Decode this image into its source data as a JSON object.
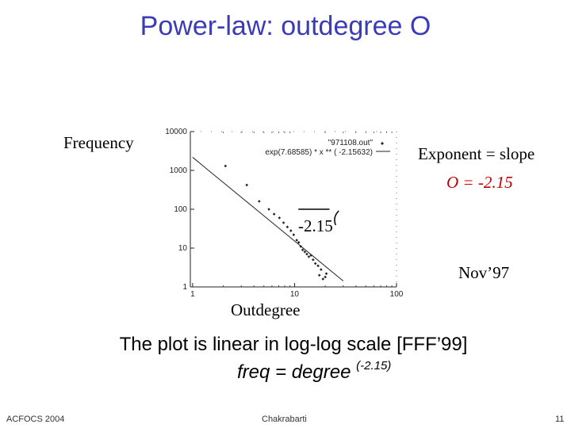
{
  "slide": {
    "title": "Power-law: outdegree O",
    "frequency_label": "Frequency",
    "exponent_label": "Exponent = slope",
    "exponent_value": "O = -2.15",
    "slope_annotation": "-2.15",
    "date_label": "Nov’97",
    "caption_line1": "The plot is linear in log-log scale [FFF’99]",
    "caption_line2_base": "freq = degree ",
    "caption_line2_exp": "(-2.15)",
    "footer_left": "ACFOCS 2004",
    "footer_center": "Chakrabarti",
    "footer_right": "11"
  },
  "chart_data": {
    "type": "scatter",
    "xscale": "log",
    "yscale": "log",
    "xlim": [
      0.95,
      100
    ],
    "ylim": [
      1,
      10000
    ],
    "xtick_labels": [
      "1",
      "10",
      "100"
    ],
    "xticks": [
      1,
      10,
      100
    ],
    "ytick_labels": [
      "1",
      "10",
      "100",
      "1000",
      "10000"
    ],
    "yticks": [
      1,
      10,
      100,
      1000,
      10000
    ],
    "legend": [
      {
        "label": "\"971108.out\"",
        "marker": "diamond"
      },
      {
        "label": "exp(7.68585) * x ** ( -2.15632)",
        "marker": "line"
      }
    ],
    "points": [
      {
        "x": 2.1,
        "y": 1300
      },
      {
        "x": 3.4,
        "y": 420
      },
      {
        "x": 4.5,
        "y": 160
      },
      {
        "x": 5.6,
        "y": 100
      },
      {
        "x": 6.3,
        "y": 75
      },
      {
        "x": 7.1,
        "y": 60
      },
      {
        "x": 7.8,
        "y": 45
      },
      {
        "x": 8.5,
        "y": 35
      },
      {
        "x": 9.2,
        "y": 28
      },
      {
        "x": 9.8,
        "y": 22
      },
      {
        "x": 10.5,
        "y": 16
      },
      {
        "x": 11.0,
        "y": 14
      },
      {
        "x": 11.5,
        "y": 11
      },
      {
        "x": 12.0,
        "y": 9
      },
      {
        "x": 12.6,
        "y": 8
      },
      {
        "x": 13.2,
        "y": 7
      },
      {
        "x": 13.8,
        "y": 6
      },
      {
        "x": 14.5,
        "y": 6.5
      },
      {
        "x": 15.2,
        "y": 5
      },
      {
        "x": 16.0,
        "y": 4
      },
      {
        "x": 17.0,
        "y": 3.5
      },
      {
        "x": 17.5,
        "y": 2
      },
      {
        "x": 18.2,
        "y": 2.8
      },
      {
        "x": 19.0,
        "y": 1.6
      },
      {
        "x": 20.0,
        "y": 1.8
      },
      {
        "x": 20.5,
        "y": 2.2
      }
    ],
    "fit": {
      "coefficient": 2178,
      "exponent": -2.15632,
      "x_from": 1,
      "x_to": 30
    },
    "slope_line": {
      "x_from": 11.5,
      "x_to": 22,
      "y": 100
    }
  }
}
